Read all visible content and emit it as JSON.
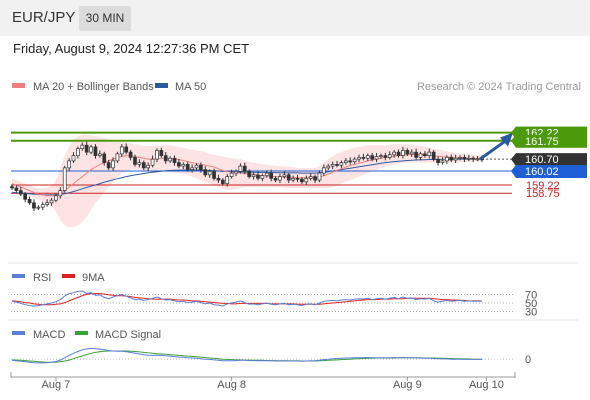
{
  "header": {
    "pair": "EUR/JPY",
    "timeframe": "30 MIN",
    "timestamp": "Friday, August 9, 2024 12:27:36 PM CET"
  },
  "legend": {
    "bollinger_label": "MA 20 + Bollinger Bands",
    "ma50_label": "MA 50",
    "credit": "Research © 2024 Trading Central",
    "bollinger_color": "#f08080",
    "ma50_color": "#2c5aa0"
  },
  "rsi_legend": {
    "rsi_label": "RSI",
    "ma_label": "9MA",
    "rsi_color": "#5b7fd6",
    "ma_color": "#e02020"
  },
  "macd_legend": {
    "macd_label": "MACD",
    "signal_label": "MACD Signal",
    "macd_color": "#5b7fd6",
    "signal_color": "#3aa03a"
  },
  "chart_data": {
    "type": "candlestick",
    "price_levels": [
      {
        "value": 162.22,
        "label": "162.22",
        "role": "resistance",
        "color": "#4c9a0c"
      },
      {
        "value": 161.75,
        "label": "161.75",
        "role": "resistance",
        "color": "#4c9a0c"
      },
      {
        "value": 160.7,
        "label": "160.70",
        "role": "last",
        "color": "#333333"
      },
      {
        "value": 160.02,
        "label": "160.02",
        "role": "pivot",
        "color": "#1f5fd6"
      },
      {
        "value": 159.22,
        "label": "159.22",
        "role": "support",
        "color": "#cc2222"
      },
      {
        "value": 158.75,
        "label": "158.75",
        "role": "support",
        "color": "#cc2222"
      }
    ],
    "ylim": [
      156.3,
      164.2
    ],
    "x_ticks": [
      "Aug 7",
      "Aug 8",
      "Aug 9",
      "Aug 10"
    ],
    "x_tick_index": [
      10,
      50,
      90,
      108
    ],
    "closes": [
      159.05,
      158.9,
      158.7,
      158.4,
      158.2,
      157.9,
      157.95,
      158.1,
      158.2,
      158.35,
      158.6,
      158.9,
      160.2,
      160.6,
      160.9,
      161.3,
      161.5,
      161.1,
      161.4,
      160.9,
      161.0,
      160.5,
      160.2,
      160.6,
      161.0,
      161.4,
      161.1,
      160.8,
      160.4,
      160.5,
      160.2,
      160.35,
      160.7,
      161.2,
      160.9,
      160.6,
      160.75,
      160.5,
      160.3,
      160.4,
      160.1,
      160.2,
      160.35,
      160.1,
      159.8,
      160.0,
      159.6,
      159.5,
      159.3,
      159.7,
      159.9,
      160.0,
      160.3,
      160.0,
      159.7,
      159.8,
      159.6,
      159.75,
      159.9,
      159.6,
      159.5,
      159.7,
      159.8,
      159.5,
      159.6,
      159.55,
      159.4,
      159.6,
      159.7,
      159.5,
      159.9,
      160.2,
      160.3,
      160.4,
      160.35,
      160.5,
      160.6,
      160.55,
      160.7,
      160.8,
      160.75,
      160.9,
      160.7,
      160.85,
      160.9,
      160.8,
      160.95,
      161.1,
      160.9,
      161.2,
      161.0,
      161.1,
      160.8,
      161.0,
      160.9,
      161.1,
      160.7,
      160.5,
      160.6,
      160.8,
      160.65,
      160.75,
      160.8,
      160.7,
      160.75,
      160.7,
      160.72,
      160.7
    ],
    "ma20": [
      159.3,
      159.2,
      159.1,
      159.0,
      158.9,
      158.8,
      158.7,
      158.65,
      158.6,
      158.6,
      158.6,
      158.7,
      158.9,
      159.1,
      159.3,
      159.5,
      159.7,
      159.9,
      160.1,
      160.25,
      160.4,
      160.5,
      160.6,
      160.7,
      160.8,
      160.85,
      160.9,
      160.9,
      160.85,
      160.8,
      160.75,
      160.7,
      160.7,
      160.72,
      160.75,
      160.75,
      160.72,
      160.7,
      160.68,
      160.62,
      160.55,
      160.5,
      160.45,
      160.4,
      160.35,
      160.3,
      160.25,
      160.15,
      160.05,
      159.98,
      159.95,
      159.92,
      159.9,
      159.88,
      159.85,
      159.82,
      159.78,
      159.75,
      159.74,
      159.72,
      159.7,
      159.68,
      159.67,
      159.66,
      159.65,
      159.64,
      159.63,
      159.63,
      159.63,
      159.63,
      159.68,
      159.75,
      159.85,
      159.95,
      160.05,
      160.15,
      160.25,
      160.33,
      160.4,
      160.47,
      160.53,
      160.6,
      160.65,
      160.7,
      160.75,
      160.8,
      160.83,
      160.86,
      160.9,
      160.93,
      160.95,
      160.96,
      160.96,
      160.95,
      160.94,
      160.93,
      160.9,
      160.87,
      160.84,
      160.82,
      160.8,
      160.78,
      160.77,
      160.76,
      160.75,
      160.74,
      160.73,
      160.72
    ],
    "bb_upper": [
      159.6,
      159.5,
      159.4,
      159.3,
      159.2,
      159.1,
      159.0,
      159.0,
      159.05,
      159.2,
      159.5,
      160.2,
      160.9,
      161.4,
      161.8,
      162.0,
      162.1,
      162.1,
      162.05,
      162.0,
      161.95,
      161.9,
      161.8,
      161.75,
      161.7,
      161.7,
      161.65,
      161.6,
      161.55,
      161.5,
      161.45,
      161.45,
      161.45,
      161.5,
      161.5,
      161.5,
      161.5,
      161.45,
      161.4,
      161.35,
      161.3,
      161.25,
      161.2,
      161.15,
      161.1,
      161.0,
      160.95,
      160.9,
      160.85,
      160.8,
      160.75,
      160.7,
      160.7,
      160.6,
      160.55,
      160.5,
      160.45,
      160.4,
      160.4,
      160.35,
      160.3,
      160.3,
      160.3,
      160.25,
      160.25,
      160.2,
      160.2,
      160.2,
      160.2,
      160.2,
      160.3,
      160.5,
      160.7,
      160.85,
      161.0,
      161.1,
      161.2,
      161.3,
      161.35,
      161.4,
      161.45,
      161.5,
      161.5,
      161.5,
      161.5,
      161.5,
      161.52,
      161.55,
      161.55,
      161.55,
      161.55,
      161.52,
      161.5,
      161.45,
      161.4,
      161.35,
      161.3,
      161.25,
      161.2,
      161.15,
      161.1,
      161.05,
      161.0,
      160.98,
      160.95,
      160.92,
      160.9,
      160.9
    ],
    "bb_lower": [
      159.0,
      158.9,
      158.8,
      158.7,
      158.6,
      158.5,
      158.4,
      158.3,
      158.15,
      158.0,
      157.7,
      157.2,
      156.9,
      156.8,
      156.8,
      156.9,
      157.1,
      157.4,
      157.8,
      158.2,
      158.5,
      158.8,
      159.1,
      159.4,
      159.7,
      159.9,
      160.0,
      160.1,
      160.1,
      160.1,
      160.05,
      160.0,
      159.95,
      159.95,
      160.0,
      160.0,
      159.95,
      159.9,
      159.9,
      159.85,
      159.8,
      159.7,
      159.6,
      159.5,
      159.4,
      159.3,
      159.2,
      159.1,
      159.0,
      158.95,
      158.95,
      159.0,
      159.05,
      159.1,
      159.1,
      159.1,
      159.1,
      159.1,
      159.1,
      159.1,
      159.1,
      159.1,
      159.05,
      159.05,
      159.05,
      159.05,
      159.05,
      159.05,
      159.05,
      159.05,
      159.05,
      159.05,
      159.05,
      159.1,
      159.2,
      159.3,
      159.4,
      159.5,
      159.6,
      159.7,
      159.8,
      159.9,
      160.0,
      160.1,
      160.2,
      160.3,
      160.35,
      160.4,
      160.45,
      160.5,
      160.5,
      160.5,
      160.5,
      160.5,
      160.5,
      160.5,
      160.5,
      160.5,
      160.5,
      160.5,
      160.5,
      160.5,
      160.52,
      160.54,
      160.55,
      160.56,
      160.57,
      160.57
    ],
    "ma50": [
      158.8,
      158.78,
      158.76,
      158.74,
      158.72,
      158.7,
      158.68,
      158.66,
      158.65,
      158.65,
      158.66,
      158.68,
      158.72,
      158.78,
      158.85,
      158.92,
      159.0,
      159.08,
      159.15,
      159.22,
      159.3,
      159.38,
      159.45,
      159.52,
      159.58,
      159.64,
      159.7,
      159.75,
      159.8,
      159.84,
      159.88,
      159.92,
      159.95,
      159.98,
      160.01,
      160.03,
      160.05,
      160.06,
      160.07,
      160.08,
      160.08,
      160.08,
      160.08,
      160.07,
      160.06,
      160.05,
      160.04,
      160.02,
      160.0,
      159.99,
      159.98,
      159.97,
      159.96,
      159.96,
      159.95,
      159.95,
      159.94,
      159.94,
      159.94,
      159.93,
      159.93,
      159.92,
      159.92,
      159.91,
      159.91,
      159.91,
      159.9,
      159.9,
      159.9,
      159.9,
      159.92,
      159.95,
      159.98,
      160.02,
      160.06,
      160.1,
      160.14,
      160.18,
      160.22,
      160.26,
      160.3,
      160.34,
      160.38,
      160.42,
      160.46,
      160.5,
      160.53,
      160.56,
      160.58,
      160.6,
      160.62,
      160.64,
      160.65,
      160.66,
      160.67,
      160.68,
      160.68,
      160.68,
      160.69,
      160.69,
      160.69,
      160.7,
      160.7,
      160.7,
      160.7,
      160.7,
      160.7,
      160.7
    ],
    "target_arrow": {
      "from_price": 160.7,
      "to_price": 162.22
    },
    "rsi": {
      "levels": [
        70,
        50,
        30
      ],
      "ylim": [
        15,
        85
      ],
      "rsi": [
        54,
        52,
        49,
        46,
        44,
        43,
        44,
        46,
        48,
        50,
        53,
        58,
        66,
        72,
        74,
        77,
        78,
        72,
        74,
        68,
        69,
        63,
        60,
        64,
        67,
        70,
        66,
        62,
        58,
        59,
        56,
        58,
        61,
        64,
        60,
        57,
        58,
        55,
        53,
        54,
        51,
        52,
        54,
        51,
        48,
        50,
        46,
        45,
        43,
        48,
        50,
        52,
        55,
        51,
        47,
        48,
        46,
        48,
        50,
        47,
        46,
        48,
        49,
        46,
        47,
        46,
        44,
        47,
        48,
        46,
        50,
        54,
        55,
        56,
        55,
        57,
        58,
        57,
        59,
        60,
        59,
        61,
        58,
        60,
        61,
        59,
        61,
        63,
        60,
        64,
        61,
        62,
        58,
        60,
        59,
        61,
        55,
        52,
        54,
        56,
        54,
        55,
        56,
        54,
        55,
        54,
        54,
        54
      ],
      "ma9": [
        55,
        54,
        53,
        51,
        50,
        48,
        47,
        46,
        46,
        46,
        47,
        48,
        51,
        55,
        59,
        63,
        67,
        70,
        72,
        72,
        72,
        71,
        69,
        68,
        67,
        67,
        66,
        65,
        63,
        62,
        61,
        60,
        59,
        59,
        59,
        59,
        59,
        58,
        57,
        57,
        56,
        55,
        55,
        54,
        53,
        52,
        51,
        50,
        49,
        49,
        48,
        48,
        49,
        49,
        49,
        49,
        49,
        49,
        49,
        48,
        48,
        48,
        48,
        48,
        48,
        47,
        47,
        47,
        47,
        47,
        47,
        48,
        49,
        50,
        51,
        52,
        53,
        54,
        55,
        56,
        57,
        58,
        58,
        58,
        59,
        59,
        59,
        60,
        60,
        60,
        61,
        61,
        61,
        61,
        61,
        61,
        60,
        59,
        58,
        58,
        57,
        57,
        56,
        56,
        55,
        55,
        55,
        55
      ]
    },
    "macd": {
      "zero_label": "0",
      "ylim": [
        -0.55,
        0.65
      ],
      "macd": [
        -0.05,
        -0.07,
        -0.09,
        -0.11,
        -0.13,
        -0.15,
        -0.16,
        -0.16,
        -0.15,
        -0.13,
        -0.1,
        -0.04,
        0.06,
        0.16,
        0.25,
        0.33,
        0.4,
        0.44,
        0.46,
        0.45,
        0.43,
        0.4,
        0.37,
        0.35,
        0.34,
        0.34,
        0.32,
        0.29,
        0.25,
        0.22,
        0.19,
        0.17,
        0.16,
        0.17,
        0.16,
        0.14,
        0.13,
        0.11,
        0.09,
        0.08,
        0.06,
        0.05,
        0.04,
        0.02,
        0.0,
        -0.01,
        -0.03,
        -0.05,
        -0.07,
        -0.07,
        -0.07,
        -0.06,
        -0.05,
        -0.05,
        -0.06,
        -0.06,
        -0.07,
        -0.07,
        -0.06,
        -0.07,
        -0.08,
        -0.08,
        -0.07,
        -0.08,
        -0.08,
        -0.08,
        -0.09,
        -0.08,
        -0.07,
        -0.07,
        -0.05,
        -0.02,
        0.0,
        0.02,
        0.03,
        0.04,
        0.05,
        0.05,
        0.06,
        0.06,
        0.06,
        0.07,
        0.06,
        0.06,
        0.06,
        0.06,
        0.06,
        0.07,
        0.06,
        0.07,
        0.06,
        0.06,
        0.05,
        0.05,
        0.04,
        0.04,
        0.03,
        0.02,
        0.01,
        0.01,
        0.0,
        0.0,
        0.0,
        -0.01,
        -0.01,
        -0.01,
        -0.01,
        -0.01
      ],
      "signal": [
        -0.03,
        -0.04,
        -0.05,
        -0.06,
        -0.08,
        -0.09,
        -0.11,
        -0.12,
        -0.13,
        -0.13,
        -0.13,
        -0.11,
        -0.08,
        -0.04,
        0.02,
        0.08,
        0.14,
        0.2,
        0.25,
        0.29,
        0.32,
        0.34,
        0.35,
        0.35,
        0.35,
        0.35,
        0.35,
        0.34,
        0.33,
        0.31,
        0.29,
        0.27,
        0.25,
        0.23,
        0.22,
        0.21,
        0.19,
        0.18,
        0.16,
        0.15,
        0.13,
        0.12,
        0.1,
        0.09,
        0.07,
        0.05,
        0.04,
        0.02,
        0.0,
        -0.01,
        -0.02,
        -0.03,
        -0.03,
        -0.04,
        -0.04,
        -0.05,
        -0.05,
        -0.05,
        -0.06,
        -0.06,
        -0.06,
        -0.07,
        -0.07,
        -0.07,
        -0.07,
        -0.07,
        -0.08,
        -0.08,
        -0.08,
        -0.08,
        -0.07,
        -0.06,
        -0.05,
        -0.04,
        -0.03,
        -0.02,
        -0.01,
        0.0,
        0.01,
        0.02,
        0.03,
        0.04,
        0.04,
        0.05,
        0.05,
        0.05,
        0.05,
        0.05,
        0.06,
        0.06,
        0.06,
        0.06,
        0.06,
        0.06,
        0.05,
        0.05,
        0.05,
        0.04,
        0.04,
        0.03,
        0.03,
        0.02,
        0.02,
        0.01,
        0.01,
        0.0,
        0.0,
        0.0
      ]
    }
  }
}
